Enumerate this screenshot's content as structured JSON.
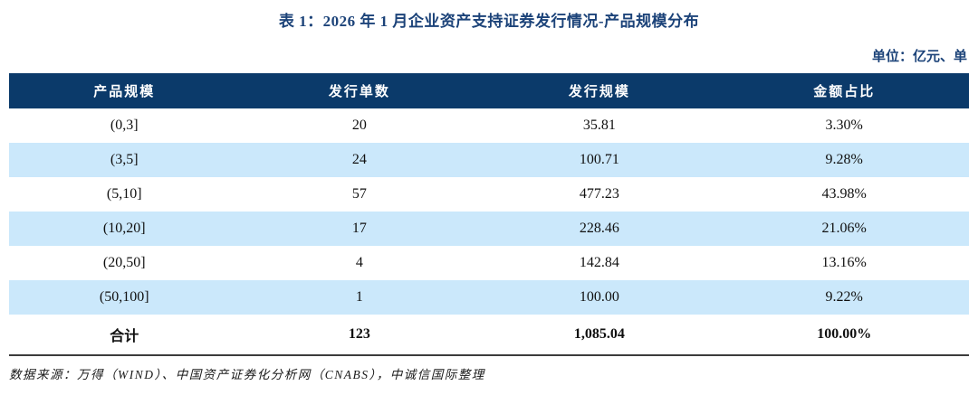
{
  "table_title": "表 1：2026 年 1 月企业资产支持证券发行情况-产品规模分布",
  "unit_label": "单位：亿元、单",
  "table": {
    "columns": [
      "产品规模",
      "发行单数",
      "发行规模",
      "金额占比"
    ],
    "rows": [
      [
        "(0,3]",
        "20",
        "35.81",
        "3.30%"
      ],
      [
        "(3,5]",
        "24",
        "100.71",
        "9.28%"
      ],
      [
        "(5,10]",
        "57",
        "477.23",
        "43.98%"
      ],
      [
        "(10,20]",
        "17",
        "228.46",
        "21.06%"
      ],
      [
        "(20,50]",
        "4",
        "142.84",
        "13.16%"
      ],
      [
        "(50,100]",
        "1",
        "100.00",
        "9.22%"
      ]
    ],
    "total_row": [
      "合计",
      "123",
      "1,085.04",
      "100.00%"
    ]
  },
  "footer": {
    "source_note": "数据来源：万得（WIND）、中国资产证券化分析网（CNABS），中诚信国际整理"
  },
  "colors": {
    "header_bg": "#0b3a6a",
    "row_alt_bg": "#cbe8fb",
    "title_color": "#1c4379",
    "table_bottom_border": "#3c3c3c"
  }
}
